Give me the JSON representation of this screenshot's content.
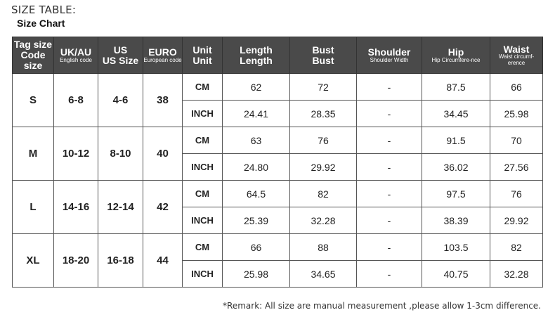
{
  "title": "SIZE TABLE:",
  "subtitle": "Size Chart",
  "headers": [
    {
      "a": "Tag size",
      "c": "Code size"
    },
    {
      "a": "UK/AU",
      "b": "English code"
    },
    {
      "a": "US",
      "c": "US Size"
    },
    {
      "a": "EURO",
      "b": "European code"
    },
    {
      "a": "Unit",
      "c": "Unit"
    },
    {
      "a": "Length",
      "c": "Length"
    },
    {
      "a": "Bust",
      "c": "Bust"
    },
    {
      "a": "Shoulder",
      "b": "Shoulder Width"
    },
    {
      "a": "Hip",
      "b": "Hip Circumfere-nce"
    },
    {
      "a": "Waist",
      "b": "Waist circumf-erence"
    }
  ],
  "rows": [
    {
      "tag": "S",
      "uk": "6-8",
      "us": "4-6",
      "euro": "38",
      "cm": [
        "CM",
        "62",
        "72",
        "-",
        "87.5",
        "66"
      ],
      "inch": [
        "INCH",
        "24.41",
        "28.35",
        "-",
        "34.45",
        "25.98"
      ]
    },
    {
      "tag": "M",
      "uk": "10-12",
      "us": "8-10",
      "euro": "40",
      "cm": [
        "CM",
        "63",
        "76",
        "-",
        "91.5",
        "70"
      ],
      "inch": [
        "INCH",
        "24.80",
        "29.92",
        "-",
        "36.02",
        "27.56"
      ]
    },
    {
      "tag": "L",
      "uk": "14-16",
      "us": "12-14",
      "euro": "42",
      "cm": [
        "CM",
        "64.5",
        "82",
        "-",
        "97.5",
        "76"
      ],
      "inch": [
        "INCH",
        "25.39",
        "32.28",
        "-",
        "38.39",
        "29.92"
      ]
    },
    {
      "tag": "XL",
      "uk": "18-20",
      "us": "16-18",
      "euro": "44",
      "cm": [
        "CM",
        "66",
        "88",
        "-",
        "103.5",
        "82"
      ],
      "inch": [
        "INCH",
        "25.98",
        "34.65",
        "-",
        "40.75",
        "32.28"
      ]
    }
  ],
  "remark": "*Remark: All size are manual measurement ,please allow 1-3cm difference."
}
